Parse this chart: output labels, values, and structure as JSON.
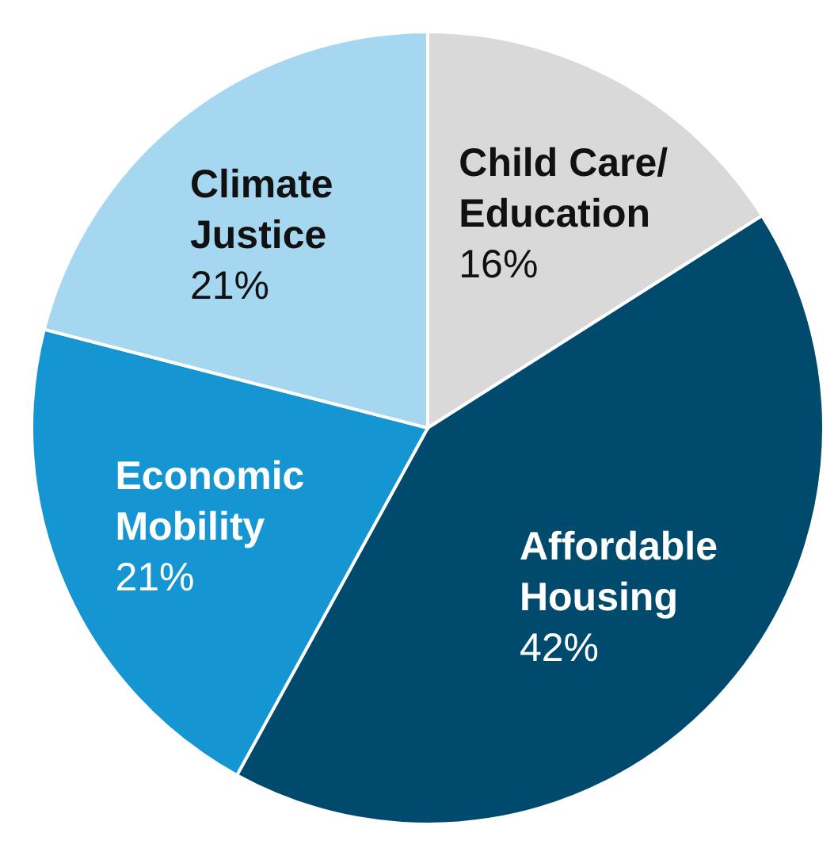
{
  "chart_data": {
    "type": "pie",
    "categories": [
      "Child Care/ Education",
      "Affordable Housing",
      "Economic Mobility",
      "Climate Justice"
    ],
    "values": [
      16,
      42,
      21,
      21
    ],
    "colors": [
      "#d9d9d9",
      "#004a6e",
      "#1596d3",
      "#a5d8f0"
    ],
    "value_labels": [
      "16%",
      "42%",
      "21%",
      "21%"
    ]
  }
}
